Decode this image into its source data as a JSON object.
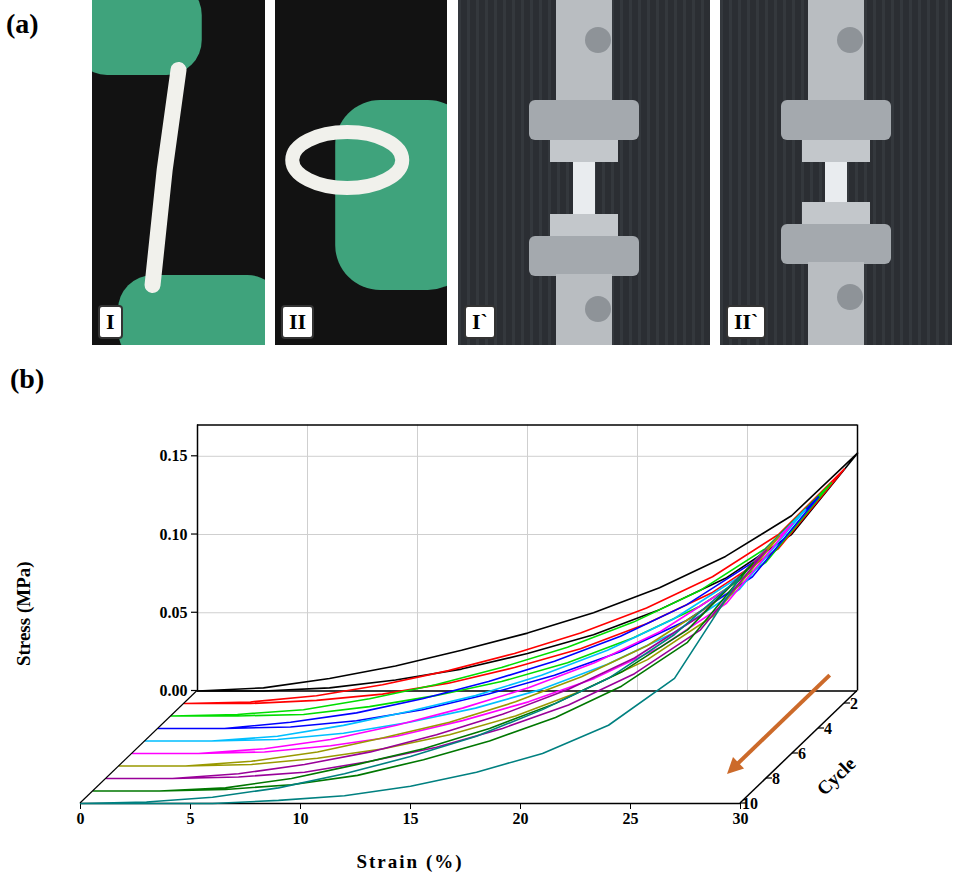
{
  "figure": {
    "panel_label": "(a)",
    "photo_labels": [
      "I",
      "II",
      "I`",
      "II`"
    ]
  },
  "chart_data": {
    "type": "line",
    "panel_label": "(b)",
    "xlabel": "Strain (%)",
    "ylabel": "Stress (MPa)",
    "zlabel": "Cycle",
    "x": [
      0,
      3,
      6,
      9,
      12,
      15,
      18,
      21,
      24,
      27,
      30,
      27,
      24,
      21,
      18,
      15,
      12,
      9,
      6,
      3,
      0
    ],
    "xlim": [
      0,
      30
    ],
    "xticks": [
      0,
      5,
      10,
      15,
      20,
      25,
      30
    ],
    "ylim": [
      0,
      0.17
    ],
    "yticks": [
      {
        "value": 0,
        "label": "0.00"
      },
      {
        "value": 0.05,
        "label": "0.05"
      },
      {
        "value": 0.1,
        "label": "0.10"
      },
      {
        "value": 0.15,
        "label": "0.15"
      }
    ],
    "zlim": [
      1,
      10
    ],
    "zticks": [
      2,
      4,
      6,
      8,
      10
    ],
    "grid": true,
    "series": [
      {
        "cycle": 1,
        "color": "#000000",
        "values": [
          0,
          0.002,
          0.008,
          0.016,
          0.026,
          0.037,
          0.05,
          0.066,
          0.086,
          0.112,
          0.152,
          0.1,
          0.072,
          0.052,
          0.036,
          0.024,
          0.014,
          0.007,
          0.002,
          0,
          0
        ]
      },
      {
        "cycle": 2,
        "color": "#ff0000",
        "values": [
          0,
          0.001,
          0.005,
          0.012,
          0.021,
          0.032,
          0.045,
          0.061,
          0.081,
          0.108,
          0.15,
          0.099,
          0.071,
          0.051,
          0.035,
          0.023,
          0.013,
          0.006,
          0.002,
          0,
          0
        ]
      },
      {
        "cycle": 3,
        "color": "#00dd00",
        "values": [
          0,
          0.001,
          0.004,
          0.011,
          0.02,
          0.031,
          0.044,
          0.06,
          0.08,
          0.107,
          0.149,
          0.098,
          0.07,
          0.05,
          0.034,
          0.022,
          0.013,
          0.006,
          0.001,
          0,
          0
        ]
      },
      {
        "cycle": 4,
        "color": "#0000ff",
        "values": [
          0,
          0,
          0.004,
          0.01,
          0.019,
          0.03,
          0.043,
          0.059,
          0.079,
          0.106,
          0.148,
          0.097,
          0.069,
          0.049,
          0.034,
          0.022,
          0.012,
          0.005,
          0.001,
          0,
          0
        ]
      },
      {
        "cycle": 5,
        "color": "#00bfff",
        "values": [
          0,
          0,
          0.003,
          0.01,
          0.019,
          0.029,
          0.042,
          0.058,
          0.078,
          0.105,
          0.148,
          0.097,
          0.069,
          0.049,
          0.033,
          0.021,
          0.012,
          0.005,
          0.001,
          0,
          0
        ]
      },
      {
        "cycle": 6,
        "color": "#ff00ff",
        "values": [
          0,
          0,
          0.003,
          0.009,
          0.018,
          0.029,
          0.042,
          0.058,
          0.078,
          0.105,
          0.147,
          0.096,
          0.068,
          0.048,
          0.033,
          0.021,
          0.011,
          0.005,
          0.001,
          0,
          0
        ]
      },
      {
        "cycle": 7,
        "color": "#999900",
        "values": [
          0,
          0,
          0.003,
          0.009,
          0.018,
          0.028,
          0.041,
          0.057,
          0.077,
          0.104,
          0.147,
          0.096,
          0.068,
          0.048,
          0.032,
          0.02,
          0.011,
          0.005,
          0.001,
          0,
          0
        ]
      },
      {
        "cycle": 8,
        "color": "#990099",
        "values": [
          0,
          0,
          0.003,
          0.009,
          0.017,
          0.028,
          0.041,
          0.057,
          0.077,
          0.104,
          0.146,
          0.095,
          0.067,
          0.047,
          0.032,
          0.02,
          0.011,
          0.004,
          0.001,
          0,
          0
        ]
      },
      {
        "cycle": 9,
        "color": "#007700",
        "values": [
          0,
          0,
          0.002,
          0.008,
          0.017,
          0.027,
          0.04,
          0.056,
          0.076,
          0.103,
          0.146,
          0.095,
          0.067,
          0.047,
          0.032,
          0.02,
          0.01,
          0.004,
          0.001,
          0,
          0
        ]
      },
      {
        "cycle": 10,
        "color": "#008080",
        "values": [
          0,
          0.001,
          0.004,
          0.01,
          0.019,
          0.03,
          0.043,
          0.06,
          0.08,
          0.108,
          0.145,
          0.08,
          0.05,
          0.032,
          0.02,
          0.011,
          0.005,
          0.002,
          0,
          0,
          0
        ]
      }
    ]
  }
}
